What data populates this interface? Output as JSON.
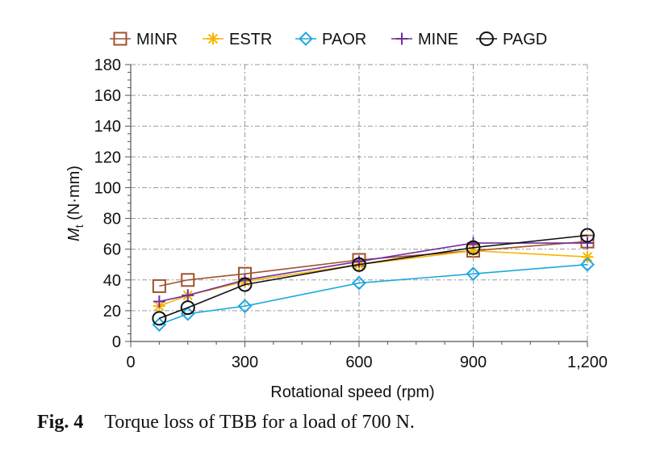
{
  "caption": {
    "label": "Fig. 4",
    "text": "Torque loss of TBB for a load of 700 N."
  },
  "chart_data": {
    "type": "line",
    "title": "",
    "xlabel": "Rotational speed (rpm)",
    "ylabel_main": "M",
    "ylabel_sub": "t",
    "ylabel_unit": " (N·mm)",
    "xlim": [
      0,
      1200
    ],
    "ylim": [
      0,
      180
    ],
    "x_ticks": [
      0,
      300,
      600,
      900,
      1200
    ],
    "x_tick_labels": [
      "0",
      "300",
      "600",
      "900",
      "1,200"
    ],
    "y_ticks": [
      0,
      20,
      40,
      60,
      80,
      100,
      120,
      140,
      160,
      180
    ],
    "y_tick_labels": [
      "0",
      "20",
      "40",
      "60",
      "80",
      "100",
      "120",
      "140",
      "160",
      "180"
    ],
    "grid": true,
    "legend_position": "top",
    "series": [
      {
        "name": "MINR",
        "color": "#a0522d",
        "marker": "square",
        "x": [
          75,
          150,
          300,
          600,
          900,
          1200
        ],
        "y": [
          36,
          40,
          44,
          53,
          59,
          65
        ]
      },
      {
        "name": "ESTR",
        "color": "#f7b500",
        "marker": "asterisk",
        "x": [
          75,
          150,
          300,
          600,
          900,
          1200
        ],
        "y": [
          23,
          30,
          39,
          50,
          59,
          55
        ]
      },
      {
        "name": "PAOR",
        "color": "#1ea8e0",
        "marker": "diamond",
        "x": [
          75,
          150,
          300,
          600,
          900,
          1200
        ],
        "y": [
          11,
          18,
          23,
          38,
          44,
          50
        ]
      },
      {
        "name": "MINE",
        "color": "#7030a0",
        "marker": "plus",
        "x": [
          75,
          150,
          300,
          600,
          900,
          1200
        ],
        "y": [
          26,
          30,
          40,
          52,
          64,
          64
        ]
      },
      {
        "name": "PAGD",
        "color": "#111111",
        "marker": "circle",
        "x": [
          75,
          150,
          300,
          600,
          900,
          1200
        ],
        "y": [
          15,
          22,
          37,
          50,
          61,
          69
        ]
      }
    ]
  }
}
